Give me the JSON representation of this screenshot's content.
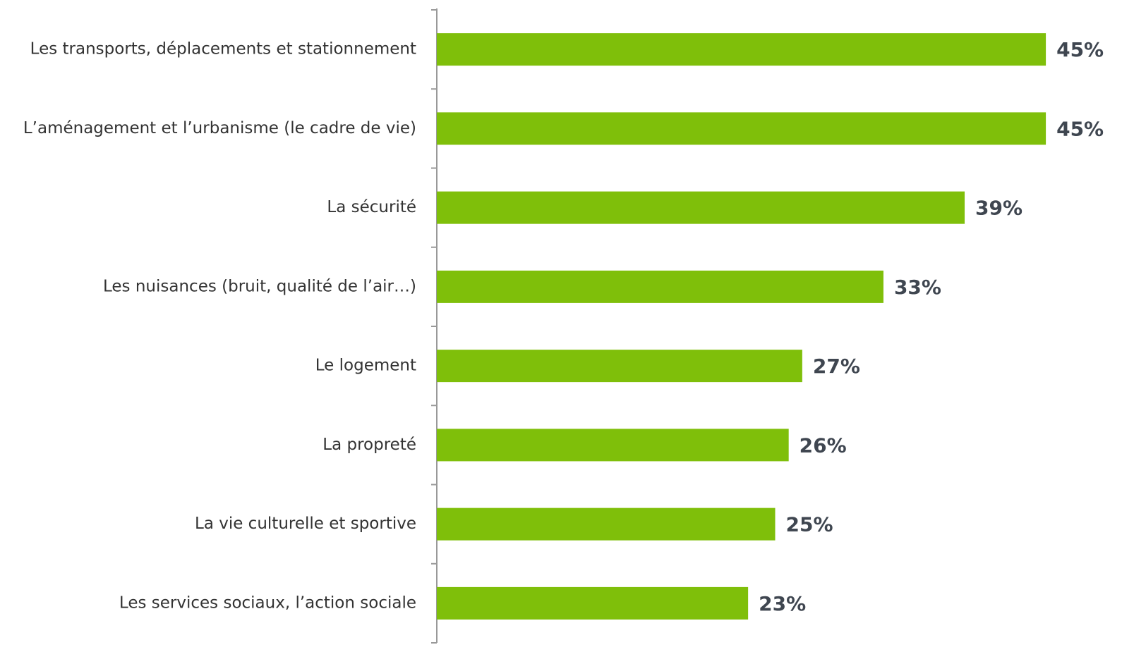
{
  "chart_data": {
    "type": "bar",
    "orientation": "horizontal",
    "categories": [
      "Les transports, déplacements et stationnement",
      "L’aménagement et l’urbanisme (le cadre de vie)",
      "La sécurité",
      "Les nuisances (bruit, qualité de l’air…)",
      "Le logement",
      "La propreté",
      "La vie culturelle et sportive",
      "Les services sociaux, l’action sociale"
    ],
    "values": [
      45,
      45,
      39,
      33,
      27,
      26,
      25,
      23
    ],
    "value_labels": [
      "45%",
      "45%",
      "39%",
      "33%",
      "27%",
      "26%",
      "25%",
      "23%"
    ],
    "color": "#7fbf0a"
  }
}
